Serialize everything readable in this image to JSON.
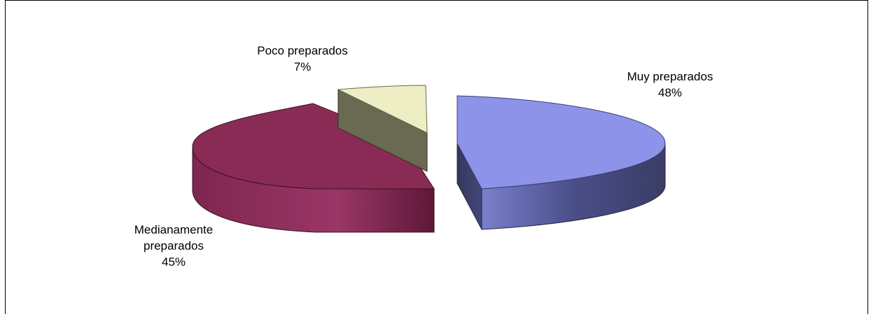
{
  "chart_data": {
    "type": "pie",
    "three_d": true,
    "exploded": true,
    "title": "",
    "slices": [
      {
        "name": "Muy preparados",
        "value": 48,
        "value_label": "48%",
        "color": "#8c93e8",
        "side_color": "#3d4070"
      },
      {
        "name": "Medianamente preparados",
        "value": 45,
        "value_label": "45%",
        "color": "#8a2b56",
        "side_color": "#5e1838",
        "label_lines": [
          "Medianamente",
          "preparados"
        ]
      },
      {
        "name": "Poco preparados",
        "value": 7,
        "value_label": "7%",
        "color": "#eeeec4",
        "side_color": "#6a6a52"
      }
    ],
    "legend": "none",
    "labels_position": "outside"
  }
}
